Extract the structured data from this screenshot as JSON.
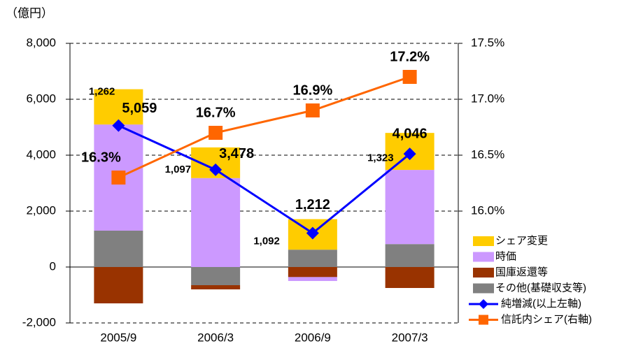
{
  "chart_data": {
    "type": "bar",
    "y_unit_label": "（億円）",
    "categories": [
      "2005/9",
      "2006/3",
      "2006/9",
      "2007/3"
    ],
    "ylim": [
      -2000,
      8000
    ],
    "yticks": [
      {
        "value": -2000,
        "label": "-2,000"
      },
      0,
      {
        "value": 2000,
        "label": "2,000"
      },
      {
        "value": 4000,
        "label": "4,000"
      },
      {
        "value": 6000,
        "label": "6,000"
      },
      {
        "value": 8000,
        "label": "8,000"
      }
    ],
    "y2lim": [
      15.0,
      17.5
    ],
    "y2ticks": [
      {
        "value": 16.0,
        "label": "16.0%"
      },
      {
        "value": 16.5,
        "label": "16.5%"
      },
      {
        "value": 17.0,
        "label": "17.0%"
      },
      {
        "value": 17.5,
        "label": "17.5%"
      }
    ],
    "grid": true,
    "legend": "right",
    "series": [
      {
        "name": "シェア変更",
        "type": "bar",
        "color": "#FFCC00",
        "values": [
          1262,
          1097,
          1092,
          1323
        ],
        "value_labels": [
          "1,262",
          "1,097",
          "1,092",
          "1,323"
        ]
      },
      {
        "name": "時価",
        "type": "bar",
        "color": "#CC99FF",
        "values": [
          3797,
          3181,
          -140,
          2653
        ]
      },
      {
        "name": "国庫返還等",
        "type": "bar",
        "color": "#993300",
        "values": [
          -1300,
          -150,
          -360,
          -750
        ]
      },
      {
        "name": "その他(基礎収支等)",
        "type": "bar",
        "color": "#808080",
        "values": [
          1300,
          -650,
          620,
          820
        ]
      },
      {
        "name": "純増減(以上左軸)",
        "type": "line",
        "color": "#0000FF",
        "values": [
          5059,
          3478,
          1212,
          4046
        ],
        "value_labels": [
          "5,059",
          "3,478",
          "1,212",
          "4,046"
        ]
      },
      {
        "name": "信託内シェア(右軸)",
        "type": "line",
        "axis": "y2",
        "color": "#FF6600",
        "values": [
          16.3,
          16.7,
          16.9,
          17.2
        ],
        "value_labels": [
          "16.3%",
          "16.7%",
          "16.9%",
          "17.2%"
        ]
      }
    ]
  }
}
